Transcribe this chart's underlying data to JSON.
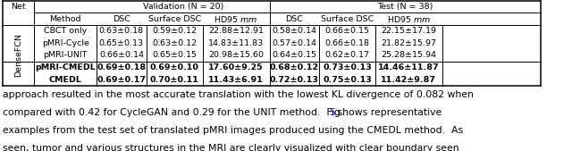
{
  "net_label": "DenseFCN",
  "val_header": "Validation (N = 20)",
  "test_header": "Test (N = 38)",
  "col_header2": [
    "Method",
    "DSC",
    "Surface DSC",
    "HD95 mm",
    "DSC",
    "Surface DSC",
    "HD95 mm"
  ],
  "rows": [
    [
      "CBCT only",
      "0.63±0.18",
      "0.59±0.12",
      "22.88±12.91",
      "0.58±0.14",
      "0.66±0.15",
      "22.15±17.19"
    ],
    [
      "pMRI-Cycle",
      "0.65±0.13",
      "0.63±0.12",
      "14.83±11.83",
      "0.57±0.14",
      "0.66±0.18",
      "21.82±15.97"
    ],
    [
      "pMRI-UNIT",
      "0.66±0.14",
      "0.65±0.15",
      "20.98±15.60",
      "0.64±0.15",
      "0.62±0.17",
      "25.28±15.94"
    ],
    [
      "pMRI-CMEDL",
      "0.69±0.18",
      "0.69±0.10",
      "17.60±9.25",
      "0.68±0.12",
      "0.73±0.13",
      "14.46±11.87"
    ],
    [
      "CMEDL",
      "0.69±0.17",
      "0.70±0.11",
      "11.43±6.91",
      "0.72±0.13",
      "0.75±0.13",
      "11.42±9.87"
    ]
  ],
  "bold_rows": [
    3,
    4
  ],
  "para_lines": [
    "approach resulted in the most accurate translation with the lowest KL divergence of 0.082 when",
    "compared with 0.42 for CycleGAN and 0.29 for the UNIT method.  Fig. |5| shows representative",
    "examples from the test set of translated pMRI images produced using the CMEDL method.  As",
    "seen, tumor and various structures in the MRI are clearly visualized with clear boundary seen"
  ],
  "background_color": "#ffffff",
  "table_font_size": 6.8,
  "header_font_size": 6.8,
  "para_font_size": 7.8
}
